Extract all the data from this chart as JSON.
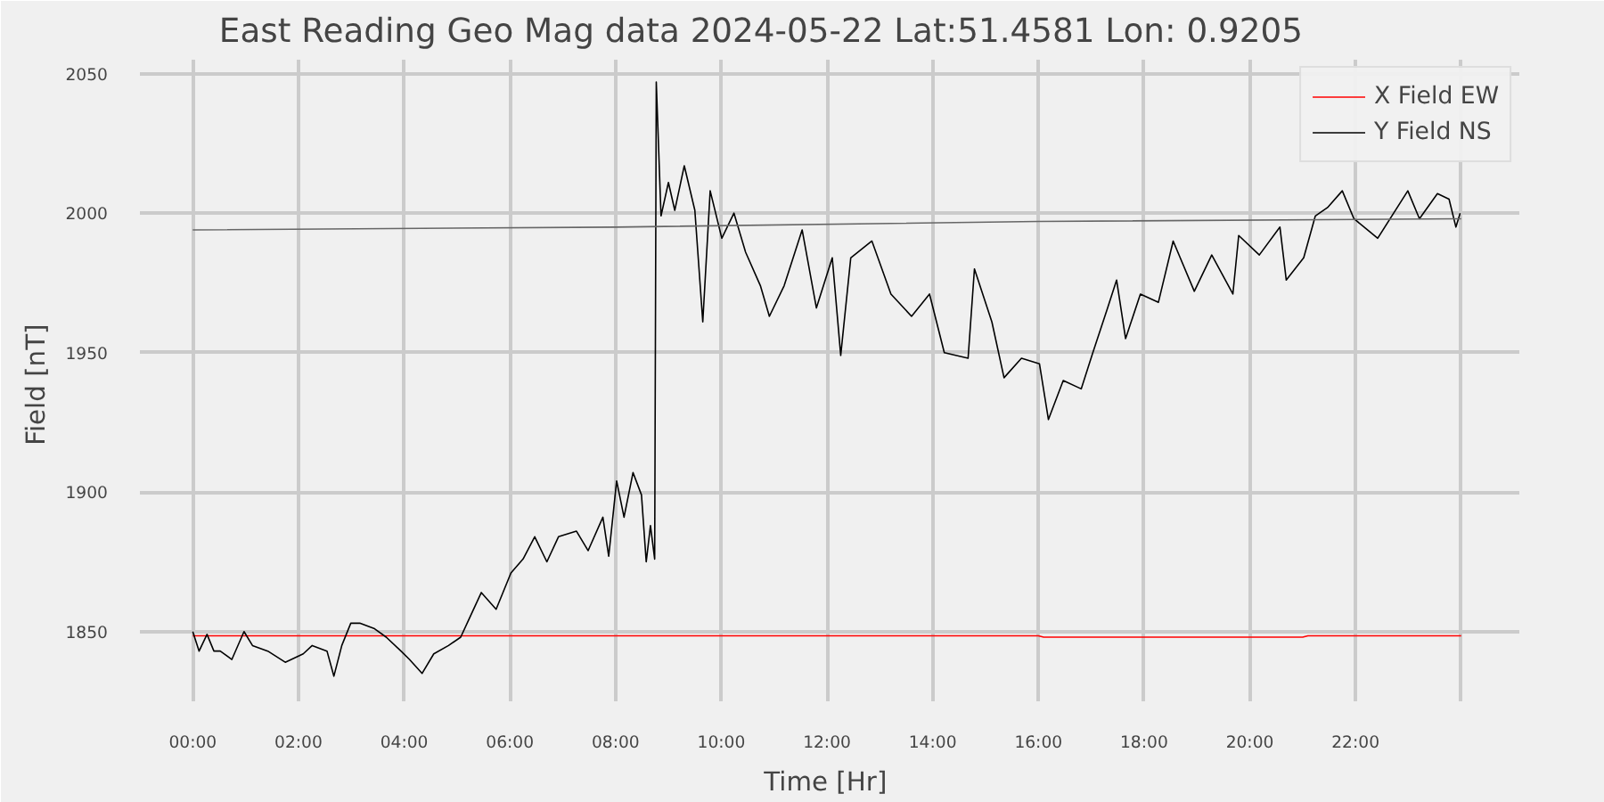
{
  "chart_data": {
    "type": "line",
    "title": "East Reading Geo Mag data        2024-05-22      Lat:51.4581  Lon: 0.9205",
    "xlabel": "Time  [Hr]",
    "ylabel": "Field  [nT]",
    "xlim": [
      -1.0,
      25.1
    ],
    "ylim": [
      1825,
      2055
    ],
    "xticks": [
      {
        "value": 0,
        "label": "00:00"
      },
      {
        "value": 2,
        "label": "02:00"
      },
      {
        "value": 4,
        "label": "04:00"
      },
      {
        "value": 6,
        "label": "06:00"
      },
      {
        "value": 8,
        "label": "08:00"
      },
      {
        "value": 10,
        "label": "10:00"
      },
      {
        "value": 12,
        "label": "12:00"
      },
      {
        "value": 14,
        "label": "14:00"
      },
      {
        "value": 16,
        "label": "16:00"
      },
      {
        "value": 18,
        "label": "18:00"
      },
      {
        "value": 20,
        "label": "20:00"
      },
      {
        "value": 22,
        "label": "22:00"
      },
      {
        "value": 24,
        "label": null
      }
    ],
    "yticks": [
      1850,
      1900,
      1950,
      2000,
      2050
    ],
    "grid": true,
    "legend": "top right",
    "line_style": "solid",
    "marker": "none",
    "series": [
      {
        "name": "X Field EW",
        "color": "#ff0000",
        "x": [
          0,
          16,
          16.1,
          21,
          21.1,
          24
        ],
        "values": [
          1848.5,
          1848.5,
          1848,
          1848,
          1848.5,
          1848.5
        ]
      },
      {
        "name": "Y Field NS",
        "color": "#000000",
        "x": [
          0.0,
          0.12,
          0.27,
          0.4,
          0.52,
          0.74,
          0.97,
          1.13,
          1.42,
          1.75,
          2.09,
          2.26,
          2.54,
          2.67,
          2.82,
          2.99,
          3.16,
          3.44,
          3.66,
          3.94,
          4.1,
          4.34,
          4.56,
          4.84,
          5.07,
          5.24,
          5.46,
          5.74,
          6.02,
          6.25,
          6.47,
          6.7,
          6.92,
          7.26,
          7.48,
          7.76,
          7.87,
          8.02,
          8.16,
          8.33,
          8.49,
          8.58,
          8.66,
          8.74,
          8.77,
          8.86,
          9.0,
          9.12,
          9.3,
          9.5,
          9.65,
          9.79,
          10.01,
          10.24,
          10.46,
          10.74,
          10.91,
          11.19,
          11.53,
          11.8,
          12.1,
          12.26,
          12.45,
          12.85,
          13.21,
          13.6,
          13.94,
          14.22,
          14.67,
          14.79,
          15.12,
          15.35,
          15.68,
          16.02,
          16.19,
          16.47,
          16.81,
          17.03,
          17.31,
          17.48,
          17.65,
          17.93,
          18.27,
          18.55,
          18.95,
          19.28,
          19.68,
          19.79,
          20.18,
          20.57,
          20.69,
          21.02,
          21.24,
          21.47,
          21.75,
          21.97,
          22.42,
          22.99,
          23.21,
          23.55,
          23.77,
          23.9,
          23.98
        ],
        "values": [
          1850,
          1843,
          1849,
          1843,
          1843,
          1840,
          1850,
          1845,
          1843,
          1839,
          1842,
          1845,
          1843,
          1834,
          1845,
          1853,
          1853,
          1851,
          1848,
          1843,
          1840,
          1835,
          1842,
          1845,
          1848,
          1855,
          1864,
          1858,
          1871,
          1876,
          1884,
          1875,
          1884,
          1886,
          1879,
          1891,
          1877,
          1904,
          1891,
          1907,
          1899,
          1875,
          1888,
          1876,
          2047,
          1999,
          2011,
          2001,
          2017,
          2001,
          1961,
          2008,
          1991,
          2000,
          1986,
          1974,
          1963,
          1974,
          1994,
          1966,
          1984,
          1949,
          1984,
          1990,
          1971,
          1963,
          1971,
          1950,
          1948,
          1980,
          1961,
          1941,
          1948,
          1946,
          1926,
          1940,
          1937,
          1950,
          1966,
          1976,
          1955,
          1971,
          1968,
          1990,
          1972,
          1985,
          1971,
          1992,
          1985,
          1995,
          1976,
          1984,
          1999,
          2002,
          2008,
          1998,
          1991,
          2008,
          1998,
          2007,
          2005,
          1995,
          2000
        ]
      },
      {
        "color": "#666666",
        "x": [
          0,
          8,
          16,
          24
        ],
        "values": [
          1994,
          1995,
          1997,
          1998
        ]
      }
    ]
  }
}
